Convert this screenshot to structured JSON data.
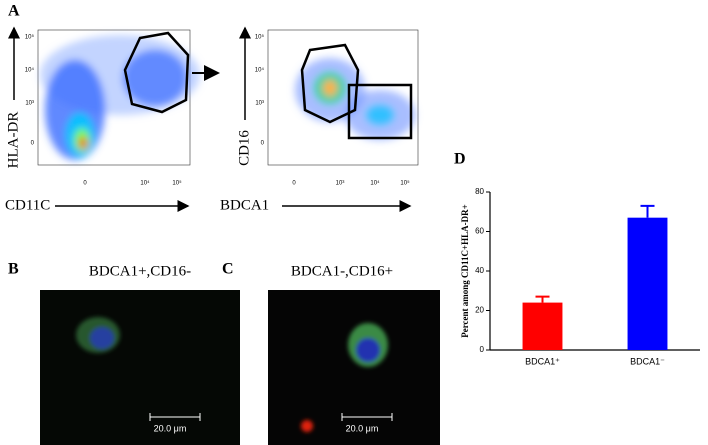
{
  "panels": {
    "a": {
      "letter": "A",
      "plot1": {
        "y_label": "HLA-DR",
        "x_label": "CD11C",
        "yticks": [
          "10⁵",
          "10⁴",
          "10³",
          "0"
        ],
        "xticks": [
          "0",
          "10⁴",
          "10⁵"
        ]
      },
      "plot2": {
        "y_label": "CD16",
        "x_label": "BDCA1",
        "yticks": [
          "10⁵",
          "10⁴",
          "10³",
          "0"
        ],
        "xticks": [
          "0",
          "10³",
          "10⁴",
          "10⁵"
        ]
      }
    },
    "b": {
      "letter": "B",
      "title": "BDCA1+,CD16-",
      "scale_bar": "20.0 μm"
    },
    "c": {
      "letter": "C",
      "title": "BDCA1-,CD16+",
      "scale_bar": "20.0 μm"
    },
    "d": {
      "letter": "D"
    }
  },
  "chart_data": {
    "type": "bar",
    "y_label": "Percent among CD11C+HLA-DR+",
    "categories": [
      "BDCA1⁺",
      "BDCA1⁻"
    ],
    "values": [
      24,
      67
    ],
    "errors": [
      3,
      6
    ],
    "colors": [
      "#ff0000",
      "#0000ff"
    ],
    "ylim": [
      0,
      80
    ],
    "yticks": [
      0,
      20,
      40,
      60,
      80
    ]
  }
}
